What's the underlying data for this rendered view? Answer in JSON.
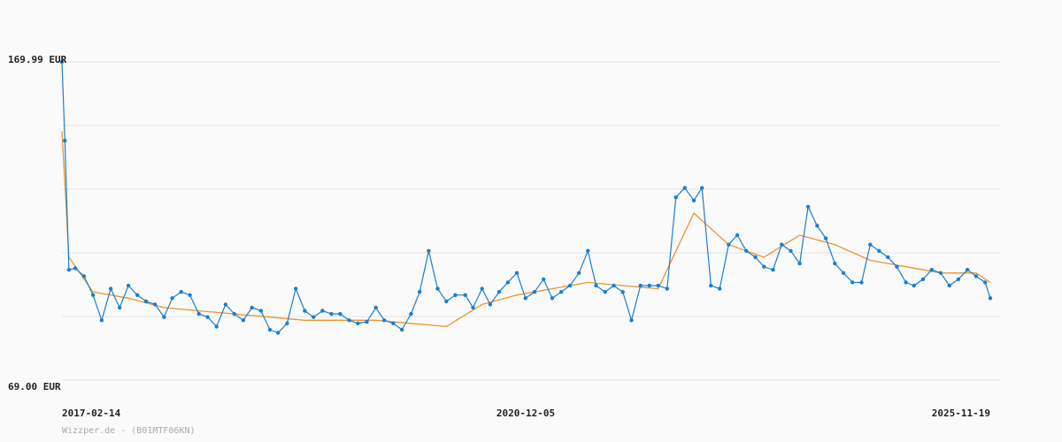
{
  "chart_data": {
    "type": "line",
    "title": "",
    "xlabel": "",
    "ylabel": "",
    "ylim": [
      69.0,
      169.99
    ],
    "y_tick_labels": [
      "169.99 EUR",
      "69.00 EUR"
    ],
    "x_tick_labels": [
      "2017-02-14",
      "2020-12-05",
      "2025-11-19"
    ],
    "grid": true,
    "credit": "Wizzper.de - (B01MTF06KN)",
    "colors": {
      "price": "#1a7fcf",
      "average": "#e8962e",
      "grid": "#e4e4e4"
    },
    "series": [
      {
        "kind": "price",
        "x": [
          "2017-02-14",
          "2017-02-24",
          "2017-03-10",
          "2017-04-01",
          "2017-05-01",
          "2017-06-01",
          "2017-07-01",
          "2017-08-01",
          "2017-09-01",
          "2017-10-01",
          "2017-11-01",
          "2017-12-01",
          "2018-01-01",
          "2018-02-01",
          "2018-03-01",
          "2018-04-01",
          "2018-05-01",
          "2018-06-01",
          "2018-07-01",
          "2018-08-01",
          "2018-09-01",
          "2018-10-01",
          "2018-11-01",
          "2018-12-01",
          "2019-01-01",
          "2019-02-01",
          "2019-03-01",
          "2019-04-01",
          "2019-05-01",
          "2019-06-01",
          "2019-07-01",
          "2019-08-01",
          "2019-09-01",
          "2019-10-01",
          "2019-11-01",
          "2019-12-01",
          "2020-01-01",
          "2020-02-01",
          "2020-03-01",
          "2020-04-01",
          "2020-05-01",
          "2020-06-01",
          "2020-07-01",
          "2020-08-01",
          "2020-09-01",
          "2020-10-01",
          "2020-11-01",
          "2020-12-05",
          "2021-01-01",
          "2021-02-01",
          "2021-03-01",
          "2021-04-01",
          "2021-05-01",
          "2021-06-01",
          "2021-07-01",
          "2021-08-01",
          "2021-09-01",
          "2021-10-01",
          "2021-11-01",
          "2021-12-01",
          "2022-01-01",
          "2022-02-01",
          "2022-03-01",
          "2022-04-01",
          "2022-05-01",
          "2022-06-01",
          "2022-07-01",
          "2022-08-01",
          "2022-09-01",
          "2022-10-01",
          "2022-11-01",
          "2022-12-01",
          "2023-01-01",
          "2023-02-01",
          "2023-03-01",
          "2023-04-01",
          "2023-05-01",
          "2023-06-01",
          "2023-07-01",
          "2023-08-01",
          "2023-09-01",
          "2023-10-01",
          "2023-11-01",
          "2023-12-01",
          "2024-01-01",
          "2024-02-01",
          "2024-03-01",
          "2024-04-01",
          "2024-05-01",
          "2024-06-01",
          "2024-07-01",
          "2024-08-01",
          "2024-09-01",
          "2024-10-01",
          "2024-11-01",
          "2024-12-01",
          "2025-01-01",
          "2025-02-01",
          "2025-03-01",
          "2025-04-01",
          "2025-05-01",
          "2025-06-01",
          "2025-07-01",
          "2025-08-01",
          "2025-09-01",
          "2025-10-01",
          "2025-11-01",
          "2025-11-19"
        ],
        "y": [
          169.99,
          145.0,
          104.0,
          104.5,
          102.0,
          96.0,
          88.0,
          98.0,
          92.0,
          99.0,
          96.0,
          94.0,
          93.0,
          89.0,
          95.0,
          97.0,
          96.0,
          90.0,
          89.0,
          86.0,
          93.0,
          90.0,
          88.0,
          92.0,
          91.0,
          85.0,
          84.0,
          87.0,
          98.0,
          91.0,
          89.0,
          91.0,
          90.0,
          90.0,
          88.0,
          87.0,
          87.5,
          92.0,
          88.0,
          87.0,
          85.0,
          90.0,
          97.0,
          110.0,
          98.0,
          94.0,
          96.0,
          96.0,
          92.0,
          98.0,
          93.0,
          97.0,
          100.0,
          103.0,
          95.0,
          97.0,
          101.0,
          95.0,
          97.0,
          99.0,
          103.0,
          110.0,
          99.0,
          97.0,
          99.0,
          97.0,
          88.0,
          99.0,
          99.0,
          99.0,
          98.0,
          127.0,
          130.0,
          126.0,
          130.0,
          99.0,
          98.0,
          112.0,
          115.0,
          110.0,
          108.0,
          105.0,
          104.0,
          112.0,
          110.0,
          106.0,
          124.0,
          118.0,
          114.0,
          106.0,
          103.0,
          100.0,
          100.0,
          112.0,
          110.0,
          108.0,
          105.0,
          100.0,
          99.0,
          101.0,
          104.0,
          103.0,
          99.0,
          101.0,
          104.0,
          102.0,
          100.0,
          95.0
        ]
      },
      {
        "kind": "average",
        "x": [
          "2017-02-14",
          "2017-03-10",
          "2017-06-01",
          "2017-10-01",
          "2018-02-01",
          "2018-06-01",
          "2018-10-01",
          "2019-02-01",
          "2019-06-01",
          "2019-10-01",
          "2020-02-01",
          "2020-06-01",
          "2020-10-01",
          "2021-02-01",
          "2021-06-01",
          "2021-10-01",
          "2022-02-01",
          "2022-06-01",
          "2022-10-01",
          "2023-02-01",
          "2023-06-01",
          "2023-10-01",
          "2024-02-01",
          "2024-06-01",
          "2024-10-01",
          "2025-02-01",
          "2025-06-01",
          "2025-10-01",
          "2025-11-19"
        ],
        "y": [
          148.0,
          108.0,
          97.0,
          95.0,
          92.0,
          91.0,
          90.0,
          89.0,
          88.0,
          88.0,
          88.0,
          87.0,
          86.0,
          93.0,
          96.0,
          98.0,
          100.0,
          99.0,
          98.0,
          122.0,
          112.0,
          108.0,
          115.0,
          112.0,
          107.0,
          105.0,
          103.0,
          103.0,
          100.0
        ]
      }
    ]
  }
}
